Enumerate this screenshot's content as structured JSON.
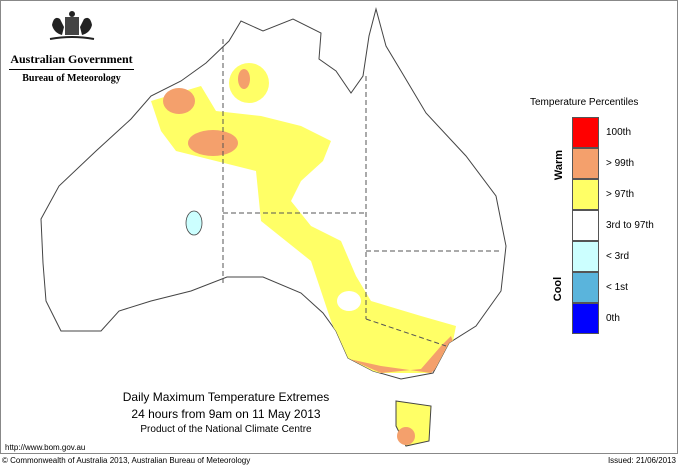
{
  "logo": {
    "line1": "Australian Government",
    "line2": "Bureau of Meteorology"
  },
  "legend": {
    "title": "Temperature Percentiles",
    "warm": "Warm",
    "cool": "Cool",
    "items": [
      {
        "label": "100th",
        "color": "#ff0000"
      },
      {
        "label": "> 99th",
        "color": "#f4a06c"
      },
      {
        "label": "> 97th",
        "color": "#ffff66"
      },
      {
        "label": "3rd to 97th",
        "color": "#ffffff"
      },
      {
        "label": "< 3rd",
        "color": "#ccffff"
      },
      {
        "label": "< 1st",
        "color": "#5ab4dc"
      },
      {
        "label": "0th",
        "color": "#0000ff"
      }
    ]
  },
  "caption": {
    "title": "Daily Maximum Temperature Extremes",
    "subtitle": "24 hours from 9am on 11 May 2013",
    "product": "Product of the National Climate Centre"
  },
  "url": "http://www.bom.gov.au",
  "footer": {
    "copyright": "© Commonwealth of Australia 2013, Australian Bureau of Meteorology",
    "issued": "Issued: 21/06/2013"
  }
}
